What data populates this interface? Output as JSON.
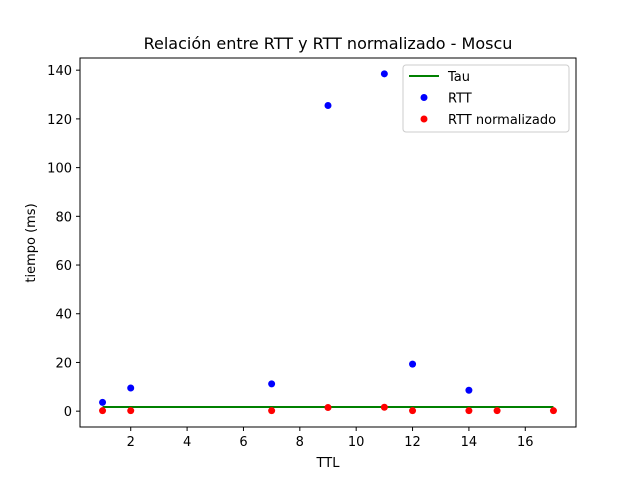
{
  "chart_data": {
    "type": "scatter",
    "title": "Relación entre RTT y RTT normalizado - Moscu",
    "xlabel": "TTL",
    "ylabel": "tiempo (ms)",
    "xlim": [
      0.2,
      17.8
    ],
    "ylim": [
      -6.5,
      145
    ],
    "xticks": [
      2,
      4,
      6,
      8,
      10,
      12,
      14,
      16
    ],
    "yticks": [
      0,
      20,
      40,
      60,
      80,
      100,
      120,
      140
    ],
    "grid": false,
    "legend_position": "top-right",
    "series": [
      {
        "name": "Tau",
        "kind": "line",
        "color": "#008000",
        "x": [
          1,
          17
        ],
        "y": [
          1.7,
          1.7
        ]
      },
      {
        "name": "RTT",
        "kind": "scatter",
        "color": "#0000ff",
        "x": [
          1,
          2,
          7,
          9,
          11,
          12,
          14
        ],
        "y": [
          3.6,
          9.5,
          11.2,
          125.5,
          138.5,
          19.3,
          8.6
        ]
      },
      {
        "name": "RTT normalizado",
        "kind": "scatter",
        "color": "#ff0000",
        "x": [
          1,
          2,
          7,
          9,
          11,
          12,
          14,
          15,
          17
        ],
        "y": [
          0.2,
          0.2,
          0.2,
          1.5,
          1.6,
          0.2,
          0.2,
          0.2,
          0.2
        ]
      }
    ]
  }
}
